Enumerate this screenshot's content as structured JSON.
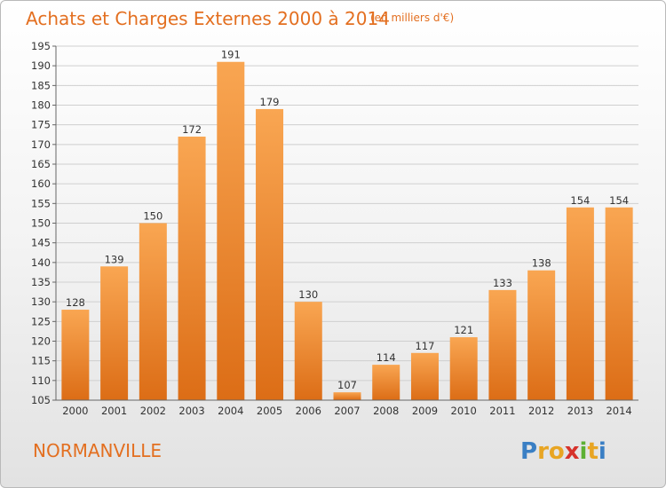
{
  "chart_data": {
    "type": "bar",
    "title": "Achats et Charges Externes 2000 à 2014",
    "subtitle": "(en milliers d'€)",
    "categories": [
      "2000",
      "2001",
      "2002",
      "2003",
      "2004",
      "2005",
      "2006",
      "2007",
      "2008",
      "2009",
      "2010",
      "2011",
      "2012",
      "2013",
      "2014"
    ],
    "values": [
      128,
      139,
      150,
      172,
      191,
      179,
      130,
      107,
      114,
      117,
      121,
      133,
      138,
      154,
      154
    ],
    "ylim": [
      105,
      195
    ],
    "yticks": [
      105,
      110,
      115,
      120,
      125,
      130,
      135,
      140,
      145,
      150,
      155,
      160,
      165,
      170,
      175,
      180,
      185,
      190,
      195
    ],
    "grid": true,
    "bar_color": "#f0862c"
  },
  "commune": "NORMANVILLE",
  "brand": {
    "letters": [
      "P",
      "r",
      "o",
      "x",
      "i",
      "t",
      "i"
    ],
    "colors": [
      "#3a7fc4",
      "#e8a523",
      "#e8a523",
      "#d6322b",
      "#5cb034",
      "#e8a523",
      "#3a7fc4"
    ]
  }
}
